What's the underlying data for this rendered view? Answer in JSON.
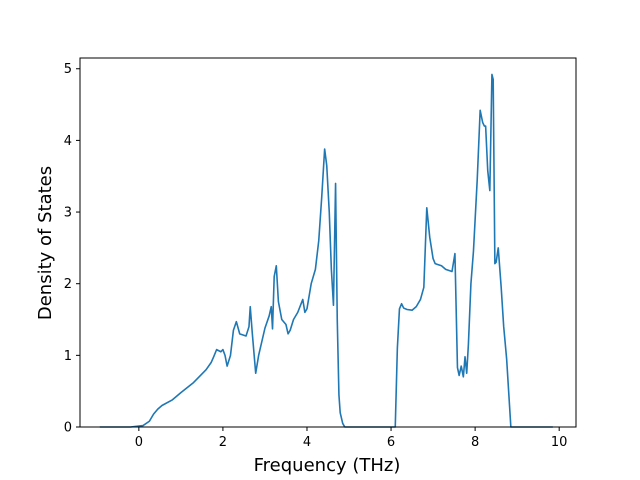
{
  "chart_data": {
    "type": "line",
    "title": "",
    "xlabel": "Frequency (THz)",
    "ylabel": "Density of States",
    "xlim": [
      -1.4,
      10.4
    ],
    "ylim": [
      0,
      5.15
    ],
    "xticks": [
      0,
      2,
      4,
      6,
      8,
      10
    ],
    "yticks": [
      0,
      1,
      2,
      3,
      4,
      5
    ],
    "grid": false,
    "legend": "none",
    "series": [
      {
        "color": "#1f77b4",
        "x": [
          -0.93,
          -0.2,
          0.1,
          0.25,
          0.35,
          0.45,
          0.55,
          0.8,
          1.0,
          1.3,
          1.6,
          1.72,
          1.78,
          1.85,
          1.95,
          2.0,
          2.05,
          2.1,
          2.18,
          2.25,
          2.32,
          2.4,
          2.55,
          2.62,
          2.65,
          2.7,
          2.78,
          2.85,
          3.0,
          3.1,
          3.15,
          3.18,
          3.22,
          3.27,
          3.32,
          3.4,
          3.5,
          3.55,
          3.6,
          3.68,
          3.78,
          3.9,
          3.95,
          4.0,
          4.1,
          4.2,
          4.28,
          4.35,
          4.42,
          4.47,
          4.53,
          4.58,
          4.63,
          4.68,
          4.72,
          4.76,
          4.79,
          4.85,
          4.9,
          4.96,
          5.05,
          5.15,
          6.1,
          6.15,
          6.2,
          6.25,
          6.3,
          6.38,
          6.5,
          6.6,
          6.7,
          6.78,
          6.85,
          6.92,
          7.0,
          7.05,
          7.1,
          7.2,
          7.3,
          7.45,
          7.52,
          7.58,
          7.62,
          7.67,
          7.72,
          7.76,
          7.8,
          7.84,
          7.9,
          7.96,
          8.05,
          8.12,
          8.18,
          8.22,
          8.25,
          8.3,
          8.35,
          8.4,
          8.43,
          8.47,
          8.5,
          8.55,
          8.62,
          8.68,
          8.75,
          8.85,
          9.0,
          9.3,
          9.85
        ],
        "y": [
          0,
          0,
          0.02,
          0.08,
          0.18,
          0.25,
          0.3,
          0.38,
          0.48,
          0.62,
          0.8,
          0.9,
          0.98,
          1.08,
          1.05,
          1.08,
          1.0,
          0.85,
          1.0,
          1.35,
          1.47,
          1.3,
          1.27,
          1.4,
          1.68,
          1.3,
          0.75,
          1.0,
          1.38,
          1.55,
          1.68,
          1.37,
          2.1,
          2.25,
          1.75,
          1.5,
          1.43,
          1.3,
          1.35,
          1.5,
          1.6,
          1.78,
          1.6,
          1.65,
          2.0,
          2.2,
          2.6,
          3.2,
          3.88,
          3.65,
          3.0,
          2.2,
          1.7,
          3.4,
          1.5,
          0.45,
          0.2,
          0.05,
          0,
          0,
          0,
          0,
          0,
          1.1,
          1.65,
          1.72,
          1.66,
          1.64,
          1.63,
          1.68,
          1.78,
          1.95,
          3.06,
          2.65,
          2.35,
          2.28,
          2.27,
          2.25,
          2.2,
          2.17,
          2.42,
          0.83,
          0.72,
          0.85,
          0.7,
          0.98,
          0.75,
          1.15,
          2.0,
          2.45,
          3.45,
          4.42,
          4.25,
          4.2,
          4.2,
          3.58,
          3.3,
          4.92,
          4.85,
          2.28,
          2.3,
          2.5,
          1.95,
          1.4,
          0.95,
          0,
          0,
          0,
          0
        ]
      }
    ]
  }
}
